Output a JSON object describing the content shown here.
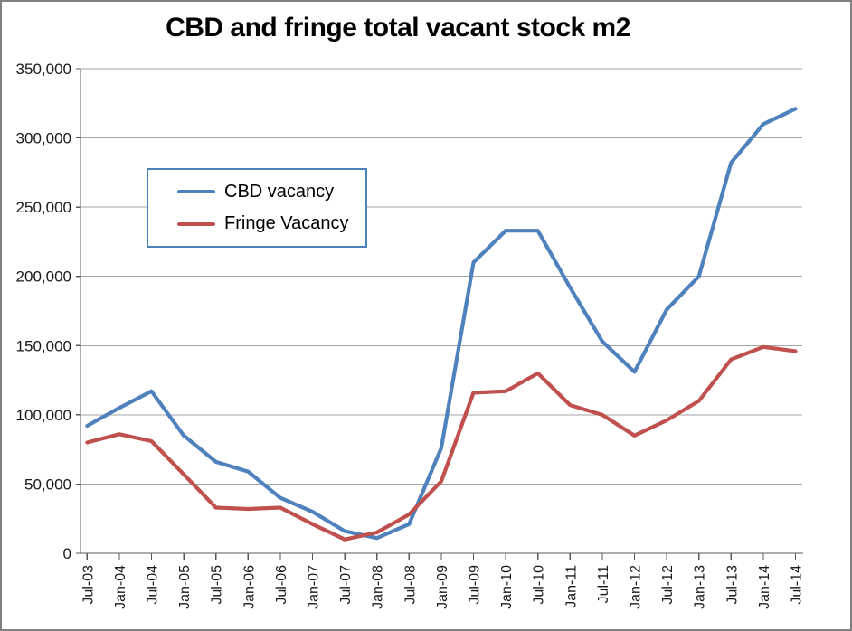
{
  "chart_data": {
    "type": "line",
    "title": "CBD and fringe total vacant stock m2",
    "categories": [
      "Jul-03",
      "Jan-04",
      "Jul-04",
      "Jan-05",
      "Jul-05",
      "Jan-06",
      "Jul-06",
      "Jan-07",
      "Jul-07",
      "Jan-08",
      "Jul-08",
      "Jan-09",
      "Jul-09",
      "Jan-10",
      "Jul-10",
      "Jan-11",
      "Jul-11",
      "Jan-12",
      "Jul-12",
      "Jan-13",
      "Jul-13",
      "Jan-14",
      "Jul-14"
    ],
    "series": [
      {
        "name": "CBD vacancy",
        "color": "#4F81BD",
        "values": [
          92000,
          105000,
          117000,
          85000,
          66000,
          59000,
          40000,
          30000,
          16000,
          11000,
          21000,
          76000,
          210000,
          233000,
          233000,
          192000,
          153000,
          131000,
          176000,
          200000,
          282000,
          310000,
          321000
        ]
      },
      {
        "name": "Fringe Vacancy",
        "color": "#C0504D",
        "values": [
          80000,
          86000,
          81000,
          57000,
          33000,
          32000,
          33000,
          21000,
          10000,
          15000,
          28000,
          52000,
          116000,
          117000,
          130000,
          107000,
          100000,
          85000,
          96000,
          110000,
          140000,
          149000,
          146000
        ]
      }
    ],
    "xlabel": "",
    "ylabel": "",
    "ylim": [
      0,
      350000
    ],
    "ytick_step": 50000,
    "ytick_labels": [
      "0",
      "50,000",
      "100,000",
      "150,000",
      "200,000",
      "250,000",
      "300,000",
      "350,000"
    ],
    "grid": true,
    "legend_position": "upper-left-inside"
  },
  "colors": {
    "gridline": "#A6A6A6",
    "axis": "#595959",
    "tick_label": "#1a1a1a",
    "frame_border": "#7F7F7F",
    "legend_border": "#4F81BD",
    "background": "#FFFFFF"
  }
}
